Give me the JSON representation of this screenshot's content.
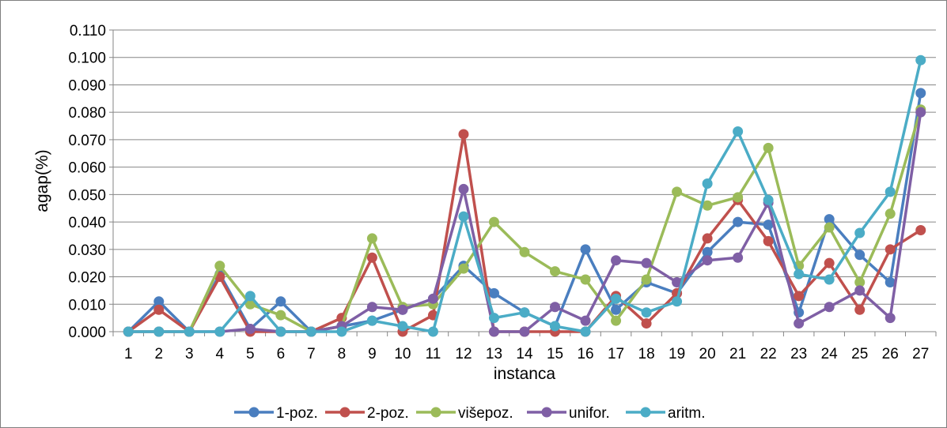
{
  "chart_data": {
    "type": "line",
    "xlabel": "instanca",
    "ylabel": "agap(%)",
    "categories": [
      "1",
      "2",
      "3",
      "4",
      "5",
      "6",
      "7",
      "8",
      "9",
      "10",
      "11",
      "12",
      "13",
      "14",
      "15",
      "16",
      "17",
      "18",
      "19",
      "20",
      "21",
      "22",
      "23",
      "24",
      "25",
      "26",
      "27"
    ],
    "yticks": [
      "0.000",
      "0.010",
      "0.020",
      "0.030",
      "0.040",
      "0.050",
      "0.060",
      "0.070",
      "0.080",
      "0.090",
      "0.100",
      "0.110"
    ],
    "ylim": [
      0,
      0.11
    ],
    "grid": true,
    "legend_position": "bottom",
    "series": [
      {
        "name": "1-poz.",
        "color": "#4a7ebf",
        "values": [
          0,
          0.011,
          0,
          0.021,
          0.001,
          0.011,
          0,
          0.002,
          0.004,
          0.008,
          0.012,
          0.024,
          0.014,
          0.007,
          0.002,
          0.03,
          0.008,
          0.018,
          0.014,
          0.029,
          0.04,
          0.039,
          0.007,
          0.041,
          0.028,
          0.018,
          0.087
        ]
      },
      {
        "name": "2-poz.",
        "color": "#c0504d",
        "values": [
          0,
          0.008,
          0,
          0.02,
          0,
          0,
          0,
          0.005,
          0.027,
          0,
          0.006,
          0.072,
          0,
          0,
          0,
          0,
          0.013,
          0.003,
          0.014,
          0.034,
          0.048,
          0.033,
          0.013,
          0.025,
          0.008,
          0.03,
          0.037
        ]
      },
      {
        "name": "višepoz.",
        "color": "#9bbb59",
        "values": [
          0,
          0,
          0,
          0.024,
          0.01,
          0.006,
          0,
          0.002,
          0.034,
          0.009,
          0.01,
          0.023,
          0.04,
          0.029,
          0.022,
          0.019,
          0.004,
          0.019,
          0.051,
          0.046,
          0.049,
          0.067,
          0.024,
          0.038,
          0.018,
          0.043,
          0.081
        ]
      },
      {
        "name": "unifor.",
        "color": "#7f5fa5",
        "values": [
          0,
          0,
          0,
          0,
          0.001,
          0,
          0,
          0.002,
          0.009,
          0.008,
          0.012,
          0.052,
          0,
          0,
          0.009,
          0.004,
          0.026,
          0.025,
          0.018,
          0.026,
          0.027,
          0.047,
          0.003,
          0.009,
          0.015,
          0.005,
          0.08
        ]
      },
      {
        "name": "aritm.",
        "color": "#4bacc6",
        "values": [
          0,
          0,
          0,
          0,
          0.013,
          0,
          0,
          0,
          0.004,
          0.002,
          0,
          0.042,
          0.005,
          0.007,
          0.002,
          0,
          0.012,
          0.007,
          0.011,
          0.054,
          0.073,
          0.048,
          0.021,
          0.019,
          0.036,
          0.051,
          0.099
        ]
      }
    ]
  }
}
